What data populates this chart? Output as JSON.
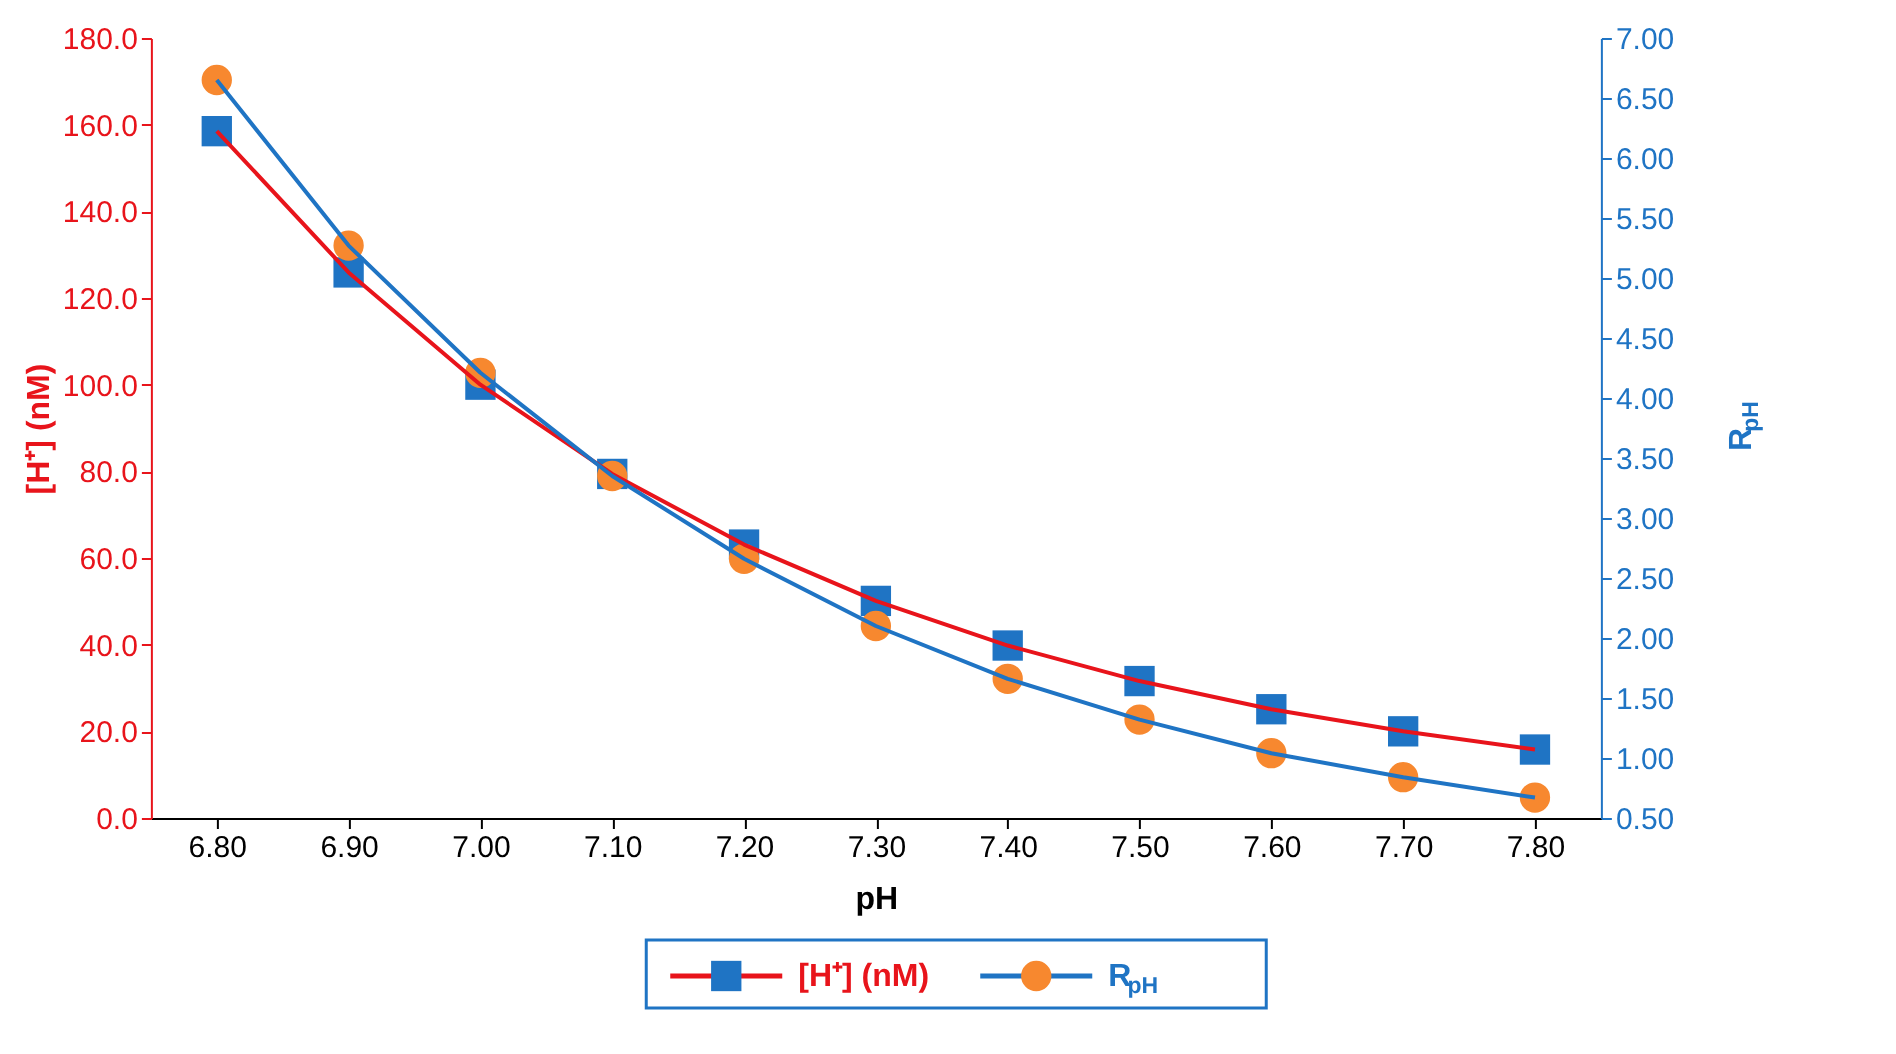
{
  "chart_data": {
    "type": "line",
    "xlabel": "pH",
    "ylabel": "[H⁺] (nM)",
    "y2label": "R$_{pH}$",
    "x": [
      6.8,
      6.9,
      7.0,
      7.1,
      7.2,
      7.3,
      7.4,
      7.5,
      7.6,
      7.7,
      7.8
    ],
    "series": [
      {
        "name": "[H⁺] (nM)",
        "color": "#e8141b",
        "marker": "square",
        "colors": [
          "#1f74c4",
          "#1f74c4",
          "#1f74c4",
          "#1f74c4",
          "#1f74c4",
          "#1f74c4",
          "#1f74c4",
          "#1f74c4",
          "#1f74c4",
          "#1f74c4",
          "#1f74c4"
        ],
        "values": [
          158.5,
          125.9,
          100.0,
          79.4,
          63.1,
          50.1,
          39.8,
          31.6,
          25.1,
          20.0,
          15.8
        ]
      },
      {
        "name": "R$_{pH}$",
        "color": "#1f74c4",
        "marker": "circle",
        "axis": "y2",
        "colors": [
          "#f7882f",
          "#f7882f",
          "#f7882f",
          "#f7882f",
          "#f7882f",
          "#f7882f",
          "#f7882f",
          "#f7882f",
          "#f7882f",
          "#f7882f",
          "#f7882f"
        ],
        "values": [
          6.65,
          5.27,
          4.21,
          3.35,
          2.66,
          2.1,
          1.66,
          1.32,
          1.04,
          0.84,
          0.67
        ]
      }
    ],
    "xlim": [
      6.75,
      7.85
    ],
    "xticks": [
      {
        "value": 6.8,
        "label": "6.80"
      },
      {
        "value": 6.9,
        "label": "6.90"
      },
      {
        "value": 7.0,
        "label": "7.00"
      },
      {
        "value": 7.1,
        "label": "7.10"
      },
      {
        "value": 7.2,
        "label": "7.20"
      },
      {
        "value": 7.3,
        "label": "7.30"
      },
      {
        "value": 7.4,
        "label": "7.40"
      },
      {
        "value": 7.5,
        "label": "7.50"
      },
      {
        "value": 7.6,
        "label": "7.60"
      },
      {
        "value": 7.7,
        "label": "7.70"
      },
      {
        "value": 7.8,
        "label": "7.80"
      }
    ],
    "ylim": [
      0,
      180
    ],
    "yticks": [
      {
        "value": 0,
        "label": "0.0"
      },
      {
        "value": 20,
        "label": "20.0"
      },
      {
        "value": 40,
        "label": "40.0"
      },
      {
        "value": 60,
        "label": "60.0"
      },
      {
        "value": 80,
        "label": "80.0"
      },
      {
        "value": 100,
        "label": "100.0"
      },
      {
        "value": 120,
        "label": "120.0"
      },
      {
        "value": 140,
        "label": "140.0"
      },
      {
        "value": 160,
        "label": "160.0"
      },
      {
        "value": 180,
        "label": "180.0"
      }
    ],
    "y2lim": [
      0.5,
      7.0
    ],
    "y2ticks": [
      {
        "value": 0.5,
        "label": "0.50"
      },
      {
        "value": 1.0,
        "label": "1.00"
      },
      {
        "value": 1.5,
        "label": "1.50"
      },
      {
        "value": 2.0,
        "label": "2.00"
      },
      {
        "value": 2.5,
        "label": "2.50"
      },
      {
        "value": 3.0,
        "label": "3.00"
      },
      {
        "value": 3.5,
        "label": "3.50"
      },
      {
        "value": 4.0,
        "label": "4.00"
      },
      {
        "value": 4.5,
        "label": "4.50"
      },
      {
        "value": 5.0,
        "label": "5.00"
      },
      {
        "value": 5.5,
        "label": "5.50"
      },
      {
        "value": 6.0,
        "label": "6.00"
      },
      {
        "value": 6.5,
        "label": "6.50"
      },
      {
        "value": 7.0,
        "label": "7.00"
      }
    ],
    "grid": false,
    "legend": "bottom",
    "line_style": "solid"
  }
}
